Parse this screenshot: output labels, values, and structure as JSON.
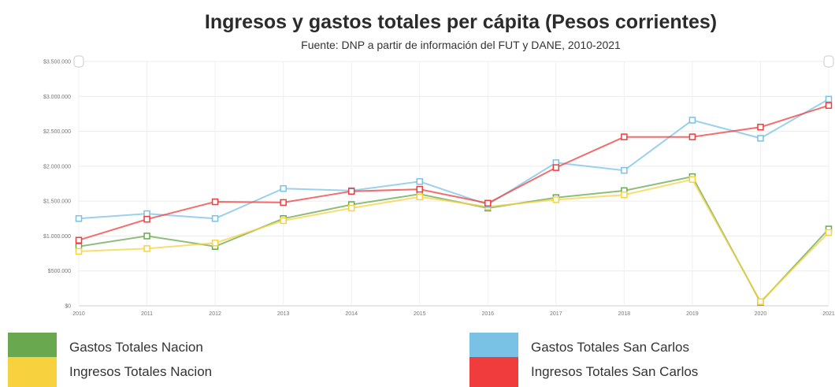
{
  "chart_data": {
    "type": "line",
    "title": "Ingresos y gastos totales per cápita (Pesos corrientes)",
    "subtitle": "Fuente: DNP a partir de información del FUT y DANE, 2010-2021",
    "xlabel": "",
    "ylabel": "",
    "categories": [
      "2010",
      "2011",
      "2012",
      "2013",
      "2014",
      "2015",
      "2016",
      "2017",
      "2018",
      "2019",
      "2020",
      "2021"
    ],
    "y_tick_labels": [
      "$0",
      "$500.000",
      "$1.000.000",
      "$1.500.000",
      "$2.000.000",
      "$2.500.000",
      "$3.000.000",
      "$3.500.000"
    ],
    "ylim": [
      0,
      3500000
    ],
    "grid": true,
    "legend_position": "bottom",
    "series": [
      {
        "name": "Gastos Totales Nacion",
        "color": "#6aa84f",
        "values": [
          850000,
          1000000,
          850000,
          1250000,
          1450000,
          1600000,
          1400000,
          1550000,
          1650000,
          1850000,
          50000,
          1100000
        ]
      },
      {
        "name": "Ingresos Totales Nacion",
        "color": "#f7d23e",
        "values": [
          780000,
          820000,
          900000,
          1220000,
          1400000,
          1560000,
          1420000,
          1520000,
          1590000,
          1810000,
          60000,
          1050000
        ]
      },
      {
        "name": "Gastos Totales San Carlos",
        "color": "#79c2e6",
        "values": [
          1250000,
          1320000,
          1250000,
          1680000,
          1650000,
          1780000,
          1450000,
          2050000,
          1940000,
          2660000,
          2400000,
          2960000
        ]
      },
      {
        "name": "Ingresos Totales San Carlos",
        "color": "#f03c3c",
        "values": [
          940000,
          1240000,
          1490000,
          1480000,
          1640000,
          1670000,
          1470000,
          1980000,
          2420000,
          2420000,
          2560000,
          2870000
        ]
      }
    ]
  }
}
